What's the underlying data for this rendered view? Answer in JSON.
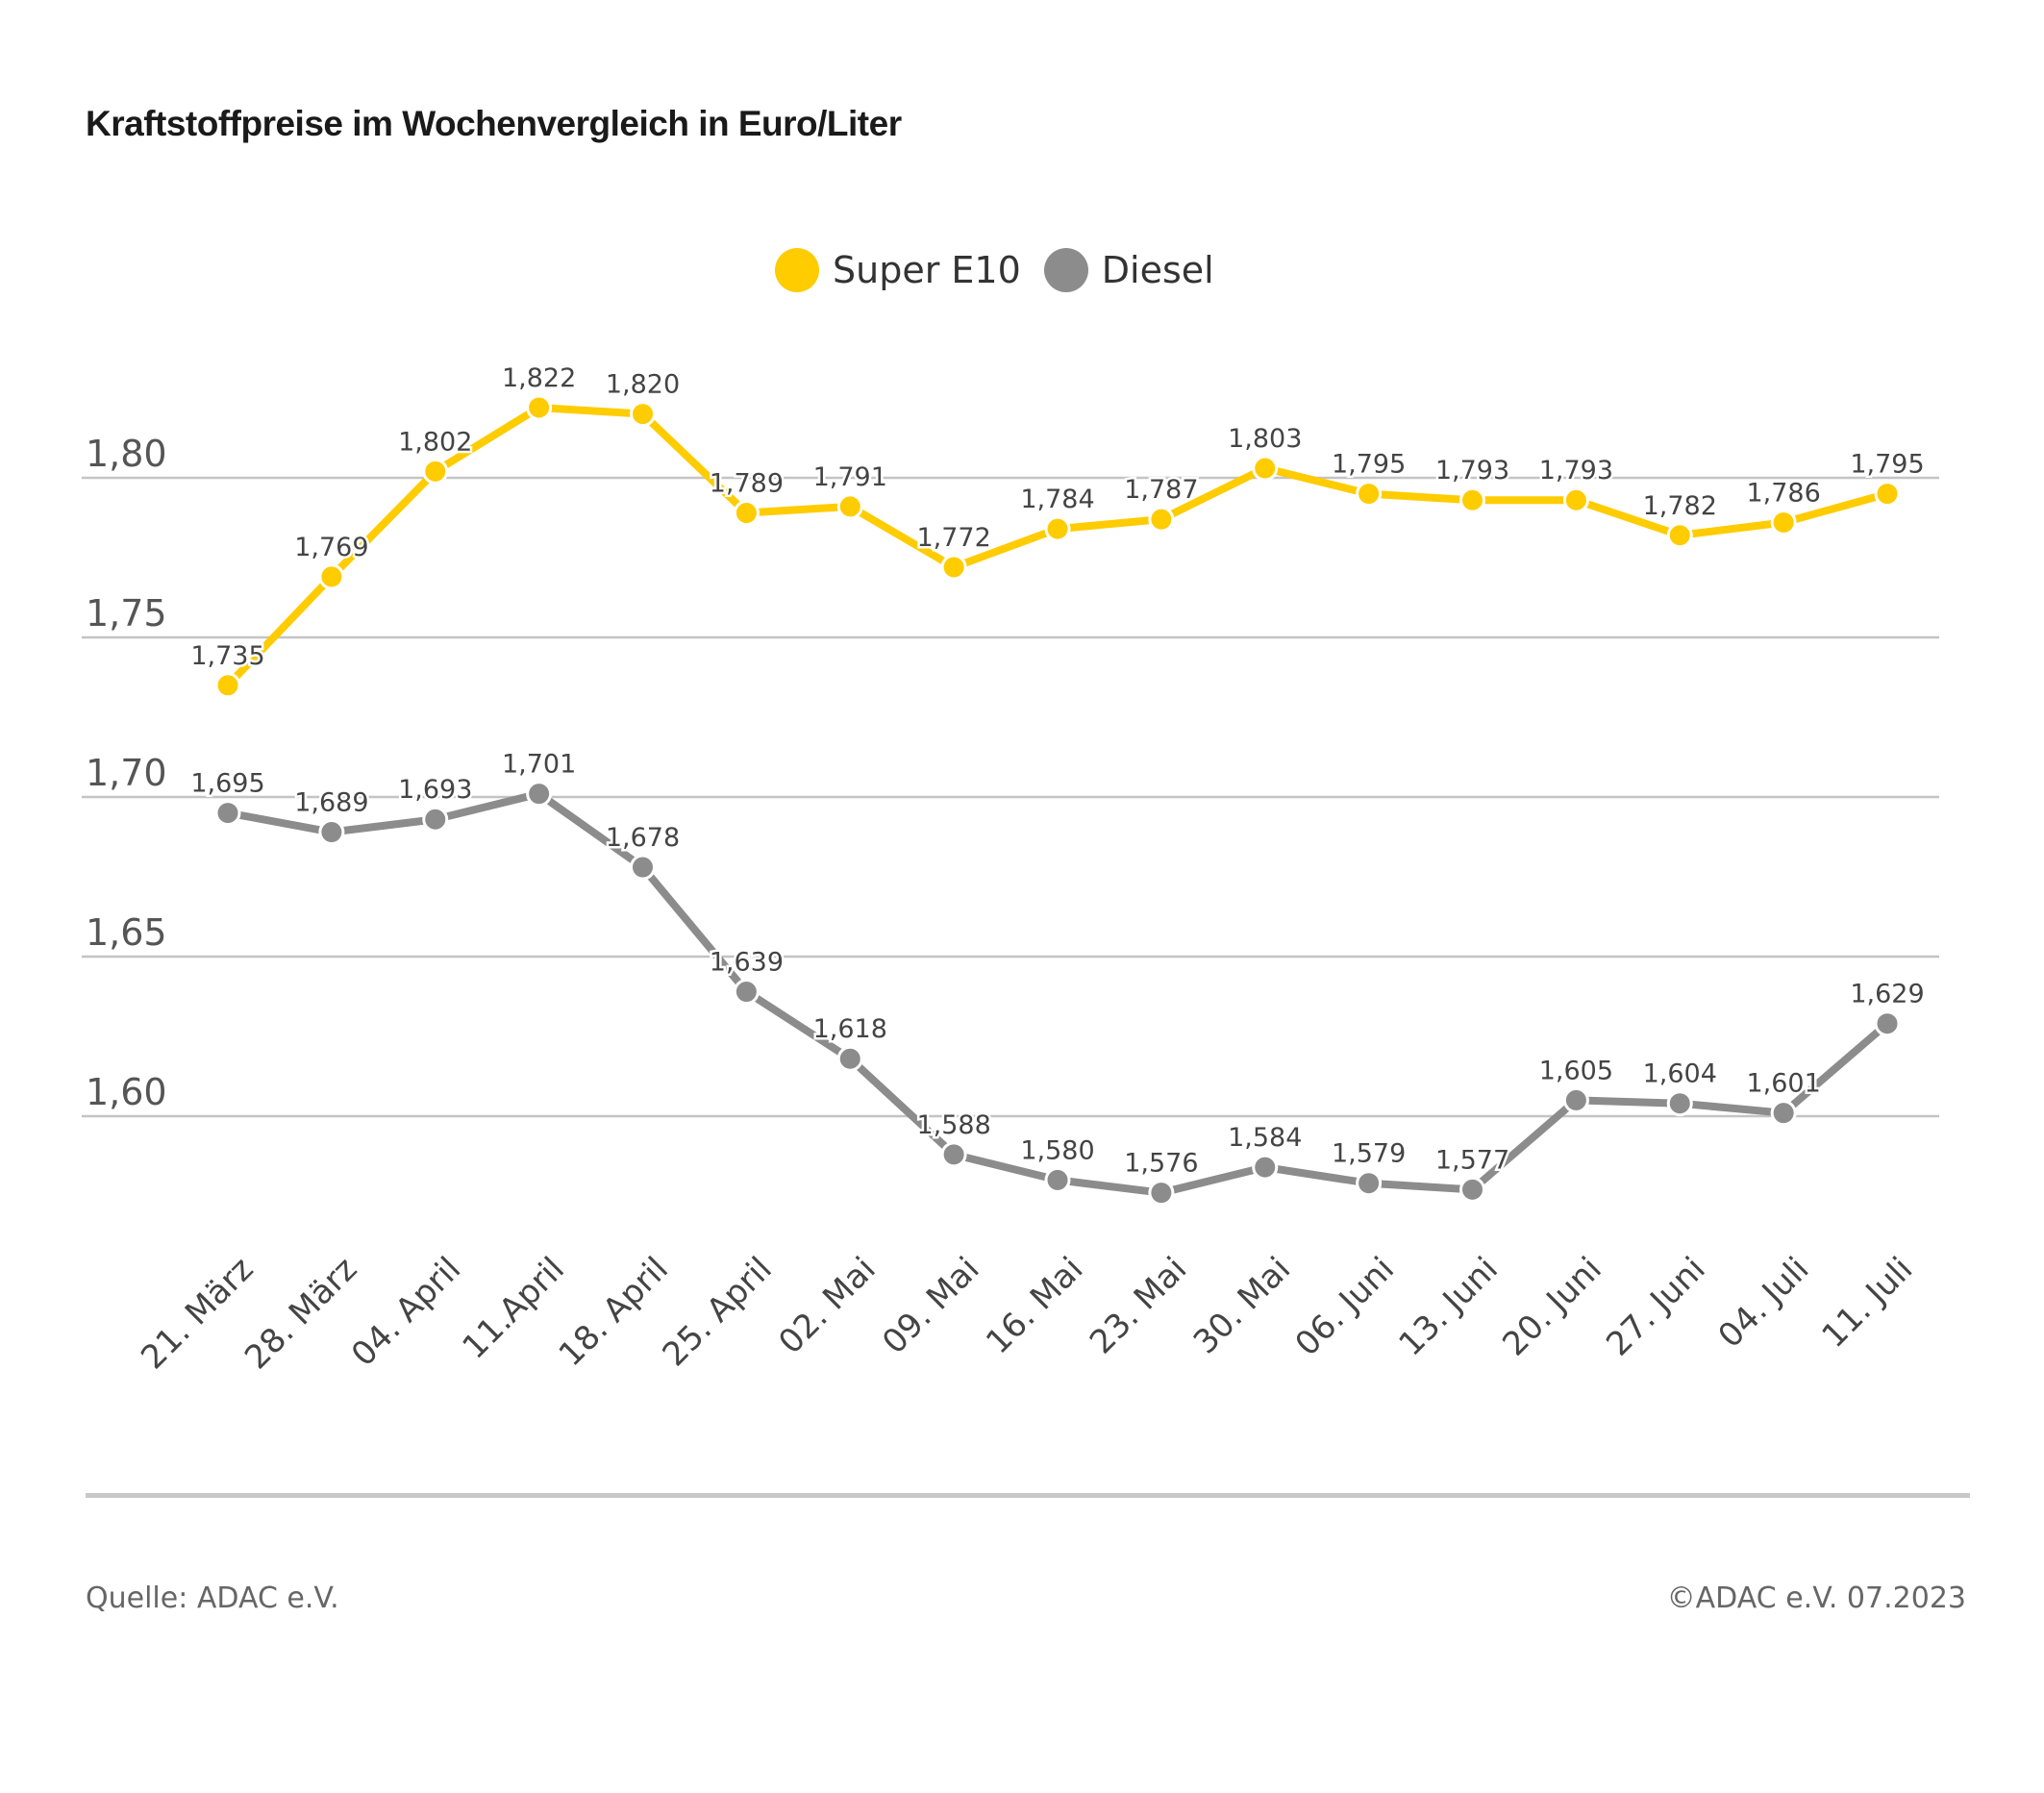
{
  "chart_data": {
    "type": "line",
    "title": "Kraftstoffpreise im Wochenvergleich in Euro/Liter",
    "categories": [
      "21. März",
      "28. März",
      "04. April",
      "11.April",
      "18. April",
      "25. April",
      "02. Mai",
      "09. Mai",
      "16. Mai",
      "23. Mai",
      "30. Mai",
      "06. Juni",
      "13. Juni",
      "20. Juni",
      "27. Juni",
      "04. Juli",
      "11. Juli"
    ],
    "series": [
      {
        "name": "Super E10",
        "color": "#FFCC00",
        "values": [
          1.735,
          1.769,
          1.802,
          1.822,
          1.82,
          1.789,
          1.791,
          1.772,
          1.784,
          1.787,
          1.803,
          1.795,
          1.793,
          1.793,
          1.782,
          1.786,
          1.795
        ],
        "labels": [
          "1,735",
          "1,769",
          "1,802",
          "1,822",
          "1,820",
          "1,789",
          "1,791",
          "1,772",
          "1,784",
          "1,787",
          "1,803",
          "1,795",
          "1,793",
          "1,793",
          "1,782",
          "1,786",
          "1,795"
        ]
      },
      {
        "name": "Diesel",
        "color": "#8C8C8C",
        "values": [
          1.695,
          1.689,
          1.693,
          1.701,
          1.678,
          1.639,
          1.618,
          1.588,
          1.58,
          1.576,
          1.584,
          1.579,
          1.577,
          1.605,
          1.604,
          1.601,
          1.629
        ],
        "labels": [
          "1,695",
          "1,689",
          "1,693",
          "1,701",
          "1,678",
          "1,639",
          "1,618",
          "1,588",
          "1,580",
          "1,576",
          "1,584",
          "1,579",
          "1,577",
          "1,605",
          "1,604",
          "1,601",
          "1,629"
        ]
      }
    ],
    "yticks": [
      1.6,
      1.65,
      1.7,
      1.75,
      1.8
    ],
    "ytick_labels": [
      "1,60",
      "1,65",
      "1,70",
      "1,75",
      "1,80"
    ],
    "grid": true,
    "legend": "top-center"
  },
  "footer": {
    "source": "Quelle: ADAC e.V.",
    "copyright": "©ADAC e.V. 07.2023"
  }
}
